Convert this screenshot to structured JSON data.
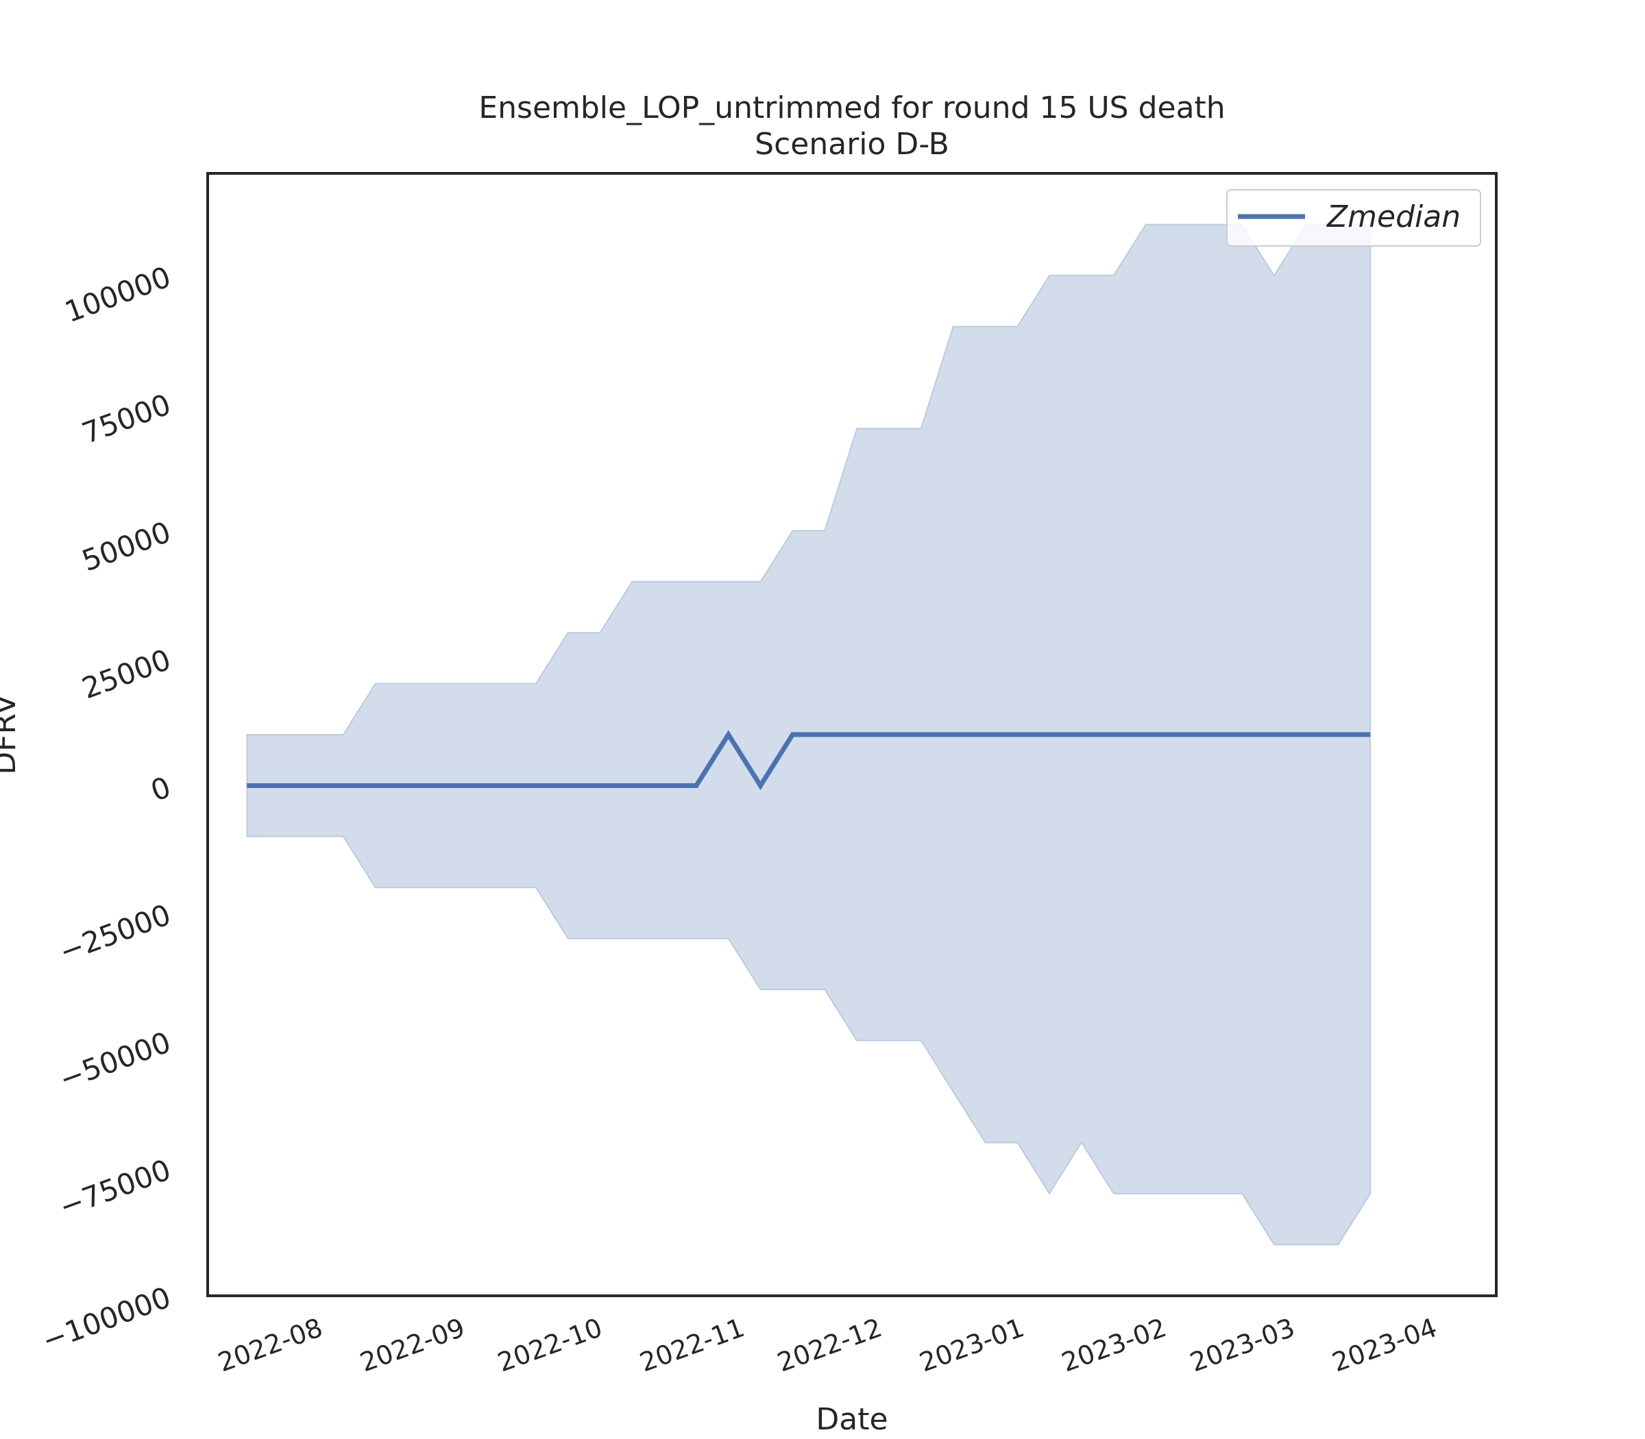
{
  "chart_data": {
    "type": "line",
    "title": "Ensemble_LOP_untrimmed for round 15 US death",
    "subtitle": "Scenario D-B",
    "xlabel": "Date",
    "ylabel": "DFRV",
    "x_tick_labels": [
      "2022-08",
      "2022-09",
      "2022-10",
      "2022-11",
      "2022-12",
      "2023-01",
      "2023-02",
      "2023-03",
      "2023-04"
    ],
    "y_tick_labels": [
      "−100000",
      "−75000",
      "−50000",
      "−25000",
      "0",
      "25000",
      "50000",
      "75000",
      "100000"
    ],
    "y_ticks": [
      -100000,
      -75000,
      -50000,
      -25000,
      0,
      25000,
      50000,
      75000,
      100000
    ],
    "xlim": [
      "2022-07-20",
      "2023-04-01"
    ],
    "ylim": [
      -100000,
      120000
    ],
    "grid": false,
    "legend_position": "top-right",
    "colors": {
      "line": "#4c72b0",
      "band": "#4c72b0"
    },
    "x": [
      "2022-07-16",
      "2022-07-23",
      "2022-07-30",
      "2022-08-06",
      "2022-08-13",
      "2022-08-20",
      "2022-08-27",
      "2022-09-03",
      "2022-09-10",
      "2022-09-17",
      "2022-09-24",
      "2022-10-01",
      "2022-10-08",
      "2022-10-15",
      "2022-10-22",
      "2022-10-29",
      "2022-11-05",
      "2022-11-12",
      "2022-11-19",
      "2022-11-26",
      "2022-12-03",
      "2022-12-10",
      "2022-12-17",
      "2022-12-24",
      "2022-12-31",
      "2023-01-07",
      "2023-01-14",
      "2023-01-21",
      "2023-01-28",
      "2023-02-04",
      "2023-02-11",
      "2023-02-18",
      "2023-02-25",
      "2023-03-04",
      "2023-03-11",
      "2023-03-18"
    ],
    "series": [
      {
        "name": "Zmedian",
        "values": [
          0,
          0,
          0,
          0,
          0,
          0,
          0,
          0,
          0,
          0,
          0,
          0,
          0,
          0,
          0,
          10000,
          0,
          10000,
          10000,
          10000,
          10000,
          10000,
          10000,
          10000,
          10000,
          10000,
          10000,
          10000,
          10000,
          10000,
          10000,
          10000,
          10000,
          10000,
          10000,
          10000
        ]
      }
    ],
    "band": {
      "upper": [
        10000,
        10000,
        10000,
        10000,
        20000,
        20000,
        20000,
        20000,
        20000,
        20000,
        30000,
        30000,
        40000,
        40000,
        40000,
        40000,
        40000,
        50000,
        50000,
        70000,
        70000,
        70000,
        90000,
        90000,
        90000,
        100000,
        100000,
        100000,
        110000,
        110000,
        110000,
        110000,
        100000,
        110000,
        110000,
        110000
      ],
      "lower": [
        -10000,
        -10000,
        -10000,
        -10000,
        -20000,
        -20000,
        -20000,
        -20000,
        -20000,
        -20000,
        -30000,
        -30000,
        -30000,
        -30000,
        -30000,
        -30000,
        -40000,
        -40000,
        -40000,
        -50000,
        -50000,
        -50000,
        -60000,
        -70000,
        -70000,
        -80000,
        -70000,
        -80000,
        -80000,
        -80000,
        -80000,
        -80000,
        -90000,
        -90000,
        -90000,
        -80000
      ]
    }
  }
}
